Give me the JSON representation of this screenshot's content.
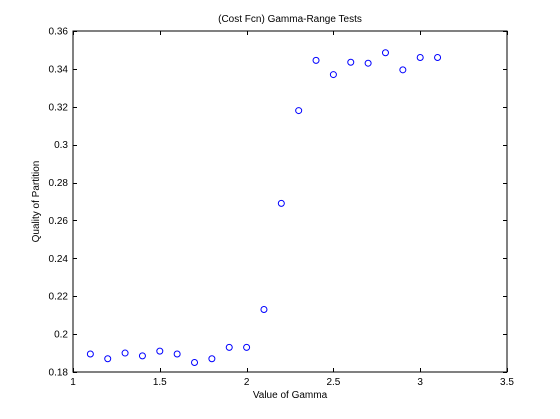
{
  "chart_data": {
    "type": "scatter",
    "title": "(Cost Fcn) Gamma-Range Tests",
    "xlabel": "Value of Gamma",
    "ylabel": "Quality of Partition",
    "xlim": [
      1,
      3.5
    ],
    "ylim": [
      0.18,
      0.36
    ],
    "xticks": [
      1,
      1.5,
      2,
      2.5,
      3,
      3.5
    ],
    "xtick_labels": [
      "1",
      "1.5",
      "2",
      "2.5",
      "3",
      "3.5"
    ],
    "yticks": [
      0.18,
      0.2,
      0.22,
      0.24,
      0.26,
      0.28,
      0.3,
      0.32,
      0.34,
      0.36
    ],
    "ytick_labels": [
      "0.18",
      "0.2",
      "0.22",
      "0.24",
      "0.26",
      "0.28",
      "0.3",
      "0.32",
      "0.34",
      "0.36"
    ],
    "grid": false,
    "marker_color": "#0000ff",
    "marker": "circle-open",
    "series": [
      {
        "x": [
          1.1,
          1.2,
          1.3,
          1.4,
          1.5,
          1.6,
          1.7,
          1.8,
          1.9,
          2.0,
          2.1,
          2.2,
          2.3,
          2.4,
          2.5,
          2.6,
          2.7,
          2.8,
          2.9,
          3.0,
          3.1
        ],
        "y": [
          0.1895,
          0.187,
          0.19,
          0.1885,
          0.191,
          0.1895,
          0.185,
          0.187,
          0.193,
          0.193,
          0.213,
          0.269,
          0.318,
          0.3445,
          0.337,
          0.3435,
          0.343,
          0.3485,
          0.3395,
          0.346,
          0.346
        ]
      }
    ]
  }
}
